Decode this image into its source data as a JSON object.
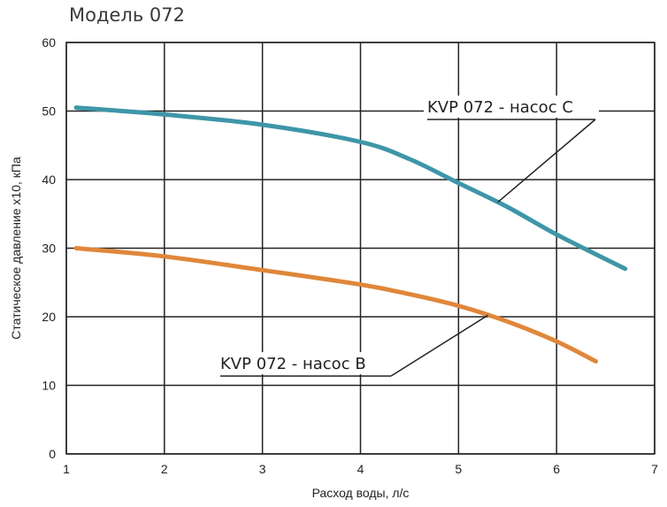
{
  "chart_data": {
    "type": "line",
    "title": "Модель 072",
    "xlabel": "Расход воды, л/с",
    "ylabel": "Статическое давление х10, кПа",
    "xlim": [
      1,
      7
    ],
    "ylim": [
      0,
      60
    ],
    "x_ticks": [
      "1",
      "2",
      "3",
      "4",
      "5",
      "6",
      "7"
    ],
    "y_ticks": [
      "0",
      "10",
      "20",
      "30",
      "40",
      "50",
      "60"
    ],
    "grid": true,
    "series": [
      {
        "name": "KVP 072 - насос C",
        "color": "#3e96a8",
        "points": [
          [
            1.1,
            50.5
          ],
          [
            2.0,
            49.5
          ],
          [
            3.0,
            48.0
          ],
          [
            4.0,
            45.5
          ],
          [
            4.5,
            43.0
          ],
          [
            5.0,
            39.5
          ],
          [
            5.5,
            36.0
          ],
          [
            6.0,
            32.0
          ],
          [
            6.7,
            27.0
          ]
        ]
      },
      {
        "name": "KVP 072 - насос B",
        "color": "#e0873a",
        "points": [
          [
            1.1,
            30.0
          ],
          [
            2.0,
            28.8
          ],
          [
            3.0,
            26.8
          ],
          [
            4.0,
            24.7
          ],
          [
            4.5,
            23.3
          ],
          [
            5.0,
            21.6
          ],
          [
            5.5,
            19.3
          ],
          [
            6.0,
            16.4
          ],
          [
            6.4,
            13.5
          ]
        ]
      }
    ],
    "annotations": [
      {
        "text": "KVP 072 - насос C",
        "series": 0,
        "pointer_x": 5.4
      },
      {
        "text": "KVP 072 - насос B",
        "series": 1,
        "pointer_x": 5.3
      }
    ]
  }
}
